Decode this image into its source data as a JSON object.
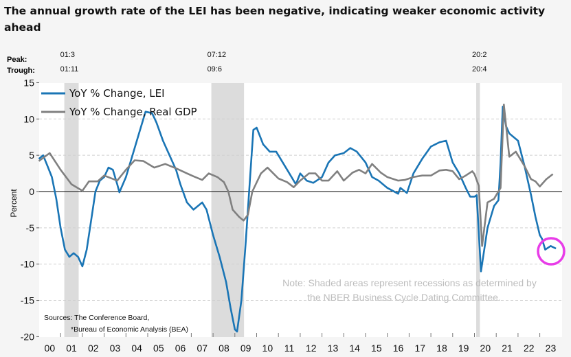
{
  "title": "The annual growth rate of the LEI has been negative, indicating weaker economic activity ahead",
  "chart_data": {
    "type": "line",
    "title": "The annual growth rate of the LEI has been negative, indicating weaker economic activity ahead",
    "ylabel": "Percent",
    "xlabel": "",
    "ylim": [
      -20,
      15
    ],
    "yticks": [
      "15",
      "10",
      "5",
      "0",
      "-5",
      "-10",
      "-15",
      "-20"
    ],
    "xlim": [
      2000,
      2024
    ],
    "xtick_labels": [
      "00",
      "01",
      "02",
      "03",
      "04",
      "05",
      "06",
      "07",
      "08",
      "09",
      "10",
      "11",
      "12",
      "13",
      "14",
      "15",
      "16",
      "17",
      "18",
      "19",
      "20",
      "21",
      "22",
      "23"
    ],
    "grid": "horizontal dashed",
    "legend_position": "top-left",
    "recession_labels": {
      "peak_label": "Peak:",
      "trough_label": "Trough:"
    },
    "recessions": [
      {
        "peak": "01:3",
        "trough": "01:11",
        "start": 2001.17,
        "end": 2001.83
      },
      {
        "peak": "07:12",
        "trough": "09:6",
        "start": 2007.92,
        "end": 2009.42
      },
      {
        "peak": "20:2",
        "trough": "20:4",
        "start": 2020.08,
        "end": 2020.25
      }
    ],
    "series": [
      {
        "name": "YoY % Change, LEI",
        "color": "#1a75b5",
        "points": [
          [
            2000.0,
            4.5
          ],
          [
            2000.2,
            5
          ],
          [
            2000.4,
            3.5
          ],
          [
            2000.6,
            2
          ],
          [
            2000.8,
            -1
          ],
          [
            2001.0,
            -5
          ],
          [
            2001.2,
            -8
          ],
          [
            2001.4,
            -9
          ],
          [
            2001.6,
            -8.5
          ],
          [
            2001.8,
            -9
          ],
          [
            2002.0,
            -10.3
          ],
          [
            2002.2,
            -8
          ],
          [
            2002.4,
            -4
          ],
          [
            2002.6,
            0
          ],
          [
            2002.8,
            1.5
          ],
          [
            2003.0,
            2
          ],
          [
            2003.2,
            3.3
          ],
          [
            2003.4,
            3
          ],
          [
            2003.6,
            1
          ],
          [
            2003.7,
            -0.1
          ],
          [
            2004.0,
            2
          ],
          [
            2004.3,
            5
          ],
          [
            2004.6,
            8
          ],
          [
            2004.9,
            11
          ],
          [
            2005.2,
            10.8
          ],
          [
            2005.4,
            9.5
          ],
          [
            2005.7,
            7
          ],
          [
            2006.0,
            5
          ],
          [
            2006.3,
            3
          ],
          [
            2006.5,
            1
          ],
          [
            2006.8,
            -1.5
          ],
          [
            2007.1,
            -2.5
          ],
          [
            2007.5,
            -1.5
          ],
          [
            2007.7,
            -2.5
          ],
          [
            2008.0,
            -6
          ],
          [
            2008.3,
            -9
          ],
          [
            2008.6,
            -12.5
          ],
          [
            2008.8,
            -16
          ],
          [
            2009.0,
            -19
          ],
          [
            2009.1,
            -19.3
          ],
          [
            2009.3,
            -15
          ],
          [
            2009.5,
            -7
          ],
          [
            2009.7,
            2
          ],
          [
            2009.85,
            8.5
          ],
          [
            2010.0,
            8.8
          ],
          [
            2010.3,
            6.5
          ],
          [
            2010.6,
            5.5
          ],
          [
            2010.9,
            5.5
          ],
          [
            2011.2,
            4
          ],
          [
            2011.5,
            2.5
          ],
          [
            2011.8,
            1
          ],
          [
            2012.0,
            2.5
          ],
          [
            2012.3,
            1.5
          ],
          [
            2012.6,
            1.2
          ],
          [
            2013.0,
            2
          ],
          [
            2013.3,
            4
          ],
          [
            2013.6,
            5
          ],
          [
            2014.0,
            5.3
          ],
          [
            2014.3,
            6
          ],
          [
            2014.6,
            5.5
          ],
          [
            2015.0,
            4
          ],
          [
            2015.3,
            2
          ],
          [
            2015.6,
            1.5
          ],
          [
            2016.0,
            0.5
          ],
          [
            2016.5,
            -0.3
          ],
          [
            2016.6,
            0.5
          ],
          [
            2016.9,
            -0.2
          ],
          [
            2017.2,
            2.5
          ],
          [
            2017.6,
            4.5
          ],
          [
            2018.0,
            6.2
          ],
          [
            2018.4,
            6.8
          ],
          [
            2018.7,
            7
          ],
          [
            2019.0,
            4
          ],
          [
            2019.3,
            2.5
          ],
          [
            2019.6,
            0.5
          ],
          [
            2019.8,
            -0.7
          ],
          [
            2020.0,
            -0.7
          ],
          [
            2020.1,
            -0.5
          ],
          [
            2020.3,
            -11
          ],
          [
            2020.6,
            -5
          ],
          [
            2020.9,
            -2
          ],
          [
            2021.1,
            -1.2
          ],
          [
            2021.2,
            4
          ],
          [
            2021.3,
            11.7
          ],
          [
            2021.45,
            9
          ],
          [
            2021.6,
            8
          ],
          [
            2021.8,
            7.5
          ],
          [
            2022.0,
            7
          ],
          [
            2022.3,
            3.5
          ],
          [
            2022.6,
            -0.5
          ],
          [
            2022.8,
            -3.5
          ],
          [
            2023.0,
            -6
          ],
          [
            2023.1,
            -6.5
          ],
          [
            2023.25,
            -8
          ],
          [
            2023.5,
            -7.5
          ],
          [
            2023.74,
            -7.85
          ]
        ]
      },
      {
        "name": "YoY % Change, Real GDP",
        "color": "#808080",
        "points": [
          [
            2000.0,
            4.2
          ],
          [
            2000.5,
            5.3
          ],
          [
            2001.0,
            3
          ],
          [
            2001.5,
            1
          ],
          [
            2002.0,
            0.1
          ],
          [
            2002.3,
            1.4
          ],
          [
            2002.7,
            1.4
          ],
          [
            2003.0,
            2.2
          ],
          [
            2003.6,
            1.5
          ],
          [
            2004.0,
            3
          ],
          [
            2004.4,
            4.3
          ],
          [
            2004.8,
            4.2
          ],
          [
            2005.3,
            3.3
          ],
          [
            2005.8,
            3.8
          ],
          [
            2006.3,
            3.2
          ],
          [
            2006.8,
            2.5
          ],
          [
            2007.1,
            2.1
          ],
          [
            2007.5,
            1.6
          ],
          [
            2007.8,
            2.5
          ],
          [
            2008.2,
            2
          ],
          [
            2008.5,
            1.3
          ],
          [
            2008.7,
            0
          ],
          [
            2008.9,
            -2.5
          ],
          [
            2009.2,
            -3.5
          ],
          [
            2009.4,
            -4
          ],
          [
            2009.6,
            -3.2
          ],
          [
            2009.8,
            0
          ],
          [
            2010.2,
            2.5
          ],
          [
            2010.5,
            3.3
          ],
          [
            2011.0,
            1.8
          ],
          [
            2011.4,
            1.3
          ],
          [
            2011.7,
            0.6
          ],
          [
            2012.0,
            1.5
          ],
          [
            2012.4,
            2.5
          ],
          [
            2012.7,
            2.5
          ],
          [
            2013.0,
            1.5
          ],
          [
            2013.3,
            1.5
          ],
          [
            2013.7,
            2.8
          ],
          [
            2014.0,
            1.5
          ],
          [
            2014.4,
            2.6
          ],
          [
            2014.7,
            3
          ],
          [
            2015.0,
            2.5
          ],
          [
            2015.3,
            3.8
          ],
          [
            2015.7,
            2.6
          ],
          [
            2016.0,
            2
          ],
          [
            2016.5,
            1.5
          ],
          [
            2016.8,
            1.6
          ],
          [
            2017.2,
            2
          ],
          [
            2017.6,
            2.2
          ],
          [
            2018.0,
            2.2
          ],
          [
            2018.4,
            2.9
          ],
          [
            2018.7,
            3
          ],
          [
            2019.0,
            2.8
          ],
          [
            2019.3,
            1.7
          ],
          [
            2019.6,
            2.2
          ],
          [
            2019.9,
            2.8
          ],
          [
            2020.0,
            2.4
          ],
          [
            2020.2,
            0.8
          ],
          [
            2020.35,
            -7.5
          ],
          [
            2020.6,
            -1.5
          ],
          [
            2020.9,
            -1
          ],
          [
            2021.2,
            0.5
          ],
          [
            2021.35,
            12
          ],
          [
            2021.6,
            4.8
          ],
          [
            2021.9,
            5.5
          ],
          [
            2022.3,
            3.5
          ],
          [
            2022.6,
            1.7
          ],
          [
            2022.8,
            1.4
          ],
          [
            2023.0,
            0.7
          ],
          [
            2023.3,
            1.7
          ],
          [
            2023.6,
            2.4
          ]
        ]
      }
    ],
    "annotations": {
      "note_line1": "Note: Shaded areas represent recessions as determined by",
      "note_line2": "the NBER Business Cycle Dating Committee.",
      "sources_line1": "Sources: The Conference Board,",
      "sources_line2": "*Bureau of Economic Analysis (BEA)",
      "highlight_color": "#e83ce8"
    }
  }
}
